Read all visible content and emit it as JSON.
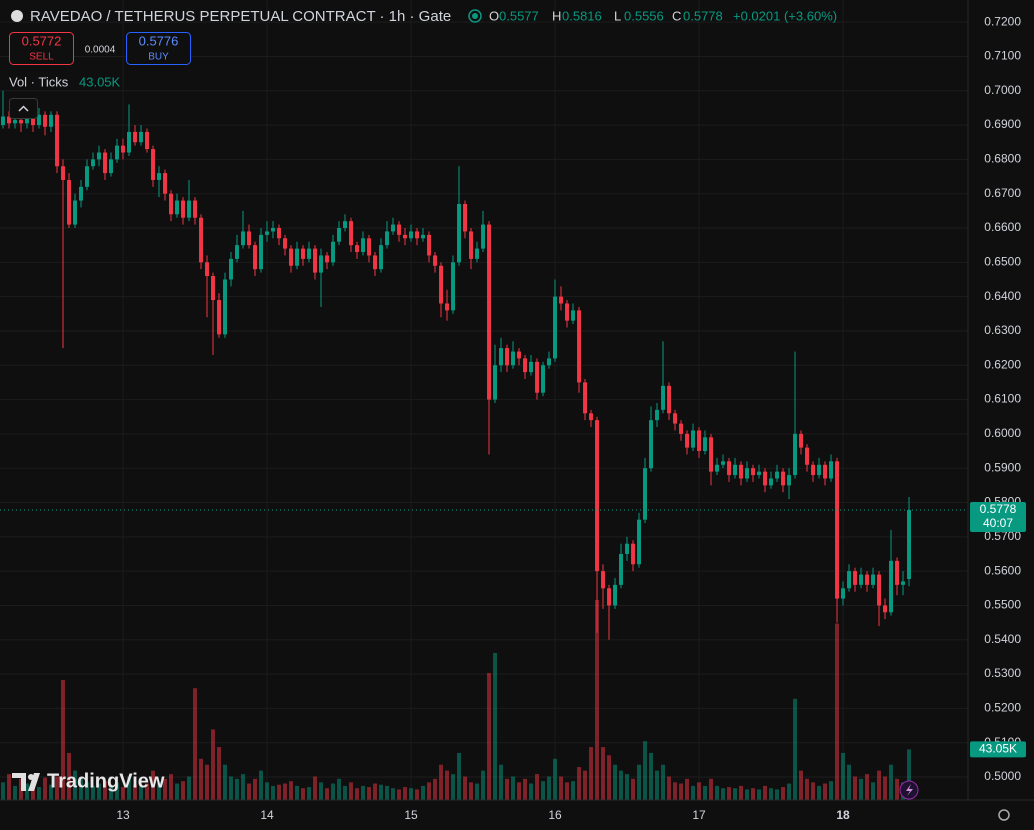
{
  "chart_data": {
    "type": "candlestick",
    "title": "RAVEDAO / TETHERUS PERPETUAL CONTRACT · 1h · Gate",
    "ohlc_labels": [
      "O",
      "H",
      "L",
      "C"
    ],
    "change": "+0.0201 (+3.60%)",
    "indicator": "Vol · Ticks",
    "volume_label": "43.05K",
    "countdown": "40:07",
    "watermark": "TradingView",
    "up_color": "#089981",
    "down_color": "#f23645",
    "grid": true,
    "ylim": [
      0.4933,
      0.7247
    ],
    "yticks": [
      {
        "value": 0.72,
        "label": "0.7200"
      },
      {
        "value": 0.71,
        "label": "0.7100"
      },
      {
        "value": 0.7,
        "label": "0.7000"
      },
      {
        "value": 0.69,
        "label": "0.6900"
      },
      {
        "value": 0.68,
        "label": "0.6800"
      },
      {
        "value": 0.67,
        "label": "0.6700"
      },
      {
        "value": 0.66,
        "label": "0.6600"
      },
      {
        "value": 0.65,
        "label": "0.6500"
      },
      {
        "value": 0.64,
        "label": "0.6400"
      },
      {
        "value": 0.63,
        "label": "0.6300"
      },
      {
        "value": 0.62,
        "label": "0.6200"
      },
      {
        "value": 0.61,
        "label": "0.6100"
      },
      {
        "value": 0.6,
        "label": "0.6000"
      },
      {
        "value": 0.59,
        "label": "0.5900"
      },
      {
        "value": 0.58,
        "label": "0.5800"
      },
      {
        "value": 0.57,
        "label": "0.5700"
      },
      {
        "value": 0.56,
        "label": "0.5600"
      },
      {
        "value": 0.55,
        "label": "0.5500"
      },
      {
        "value": 0.54,
        "label": "0.5400"
      },
      {
        "value": 0.53,
        "label": "0.5300"
      },
      {
        "value": 0.52,
        "label": "0.5200"
      },
      {
        "value": 0.51,
        "label": "0.5100"
      },
      {
        "value": 0.5,
        "label": "0.5000"
      }
    ],
    "xlim": [
      -0.5,
      160.83
    ],
    "xticks": [
      {
        "value": 20,
        "label": "13"
      },
      {
        "value": 44,
        "label": "14"
      },
      {
        "value": 68,
        "label": "15"
      },
      {
        "value": 92,
        "label": "16"
      },
      {
        "value": 116,
        "label": "17"
      },
      {
        "value": 140,
        "label": "18"
      }
    ],
    "ohlc": [
      [
        0.69,
        0.7,
        0.689,
        0.6925
      ],
      [
        0.6925,
        0.694,
        0.689,
        0.6905
      ],
      [
        0.6905,
        0.693,
        0.689,
        0.6915
      ],
      [
        0.6915,
        0.693,
        0.688,
        0.6905
      ],
      [
        0.6905,
        0.694,
        0.689,
        0.692
      ],
      [
        0.692,
        0.694,
        0.688,
        0.69
      ],
      [
        0.69,
        0.695,
        0.689,
        0.693
      ],
      [
        0.693,
        0.694,
        0.687,
        0.6895
      ],
      [
        0.6895,
        0.694,
        0.688,
        0.693
      ],
      [
        0.693,
        0.694,
        0.676,
        0.678
      ],
      [
        0.678,
        0.68,
        0.625,
        0.674
      ],
      [
        0.674,
        0.676,
        0.66,
        0.661
      ],
      [
        0.661,
        0.67,
        0.66,
        0.668
      ],
      [
        0.668,
        0.674,
        0.666,
        0.672
      ],
      [
        0.672,
        0.68,
        0.671,
        0.678
      ],
      [
        0.678,
        0.682,
        0.677,
        0.68
      ],
      [
        0.68,
        0.684,
        0.678,
        0.682
      ],
      [
        0.682,
        0.683,
        0.674,
        0.676
      ],
      [
        0.676,
        0.682,
        0.675,
        0.68
      ],
      [
        0.68,
        0.686,
        0.679,
        0.684
      ],
      [
        0.684,
        0.686,
        0.68,
        0.682
      ],
      [
        0.682,
        0.696,
        0.681,
        0.688
      ],
      [
        0.688,
        0.69,
        0.684,
        0.685
      ],
      [
        0.685,
        0.69,
        0.684,
        0.688
      ],
      [
        0.688,
        0.689,
        0.682,
        0.683
      ],
      [
        0.683,
        0.684,
        0.672,
        0.674
      ],
      [
        0.674,
        0.678,
        0.669,
        0.676
      ],
      [
        0.676,
        0.677,
        0.668,
        0.67
      ],
      [
        0.67,
        0.671,
        0.662,
        0.664
      ],
      [
        0.664,
        0.67,
        0.663,
        0.668
      ],
      [
        0.668,
        0.669,
        0.661,
        0.663
      ],
      [
        0.663,
        0.674,
        0.662,
        0.668
      ],
      [
        0.668,
        0.669,
        0.661,
        0.663
      ],
      [
        0.663,
        0.664,
        0.648,
        0.65
      ],
      [
        0.65,
        0.652,
        0.634,
        0.646
      ],
      [
        0.646,
        0.647,
        0.623,
        0.639
      ],
      [
        0.639,
        0.641,
        0.628,
        0.629
      ],
      [
        0.629,
        0.647,
        0.628,
        0.645
      ],
      [
        0.645,
        0.653,
        0.643,
        0.651
      ],
      [
        0.651,
        0.658,
        0.65,
        0.655
      ],
      [
        0.655,
        0.665,
        0.654,
        0.659
      ],
      [
        0.659,
        0.661,
        0.654,
        0.655
      ],
      [
        0.655,
        0.656,
        0.646,
        0.648
      ],
      [
        0.648,
        0.66,
        0.647,
        0.658
      ],
      [
        0.658,
        0.662,
        0.656,
        0.659
      ],
      [
        0.659,
        0.662,
        0.657,
        0.66
      ],
      [
        0.66,
        0.661,
        0.655,
        0.657
      ],
      [
        0.657,
        0.658,
        0.652,
        0.654
      ],
      [
        0.654,
        0.655,
        0.647,
        0.649
      ],
      [
        0.649,
        0.656,
        0.648,
        0.654
      ],
      [
        0.654,
        0.655,
        0.649,
        0.651
      ],
      [
        0.651,
        0.656,
        0.65,
        0.654
      ],
      [
        0.654,
        0.655,
        0.645,
        0.647
      ],
      [
        0.647,
        0.654,
        0.637,
        0.652
      ],
      [
        0.652,
        0.653,
        0.648,
        0.65
      ],
      [
        0.65,
        0.658,
        0.649,
        0.656
      ],
      [
        0.656,
        0.662,
        0.655,
        0.66
      ],
      [
        0.66,
        0.664,
        0.659,
        0.662
      ],
      [
        0.662,
        0.663,
        0.653,
        0.655
      ],
      [
        0.655,
        0.656,
        0.651,
        0.653
      ],
      [
        0.653,
        0.659,
        0.652,
        0.657
      ],
      [
        0.657,
        0.658,
        0.65,
        0.652
      ],
      [
        0.652,
        0.653,
        0.646,
        0.648
      ],
      [
        0.648,
        0.657,
        0.647,
        0.655
      ],
      [
        0.655,
        0.662,
        0.654,
        0.659
      ],
      [
        0.659,
        0.663,
        0.658,
        0.661
      ],
      [
        0.661,
        0.662,
        0.656,
        0.658
      ],
      [
        0.658,
        0.66,
        0.655,
        0.657
      ],
      [
        0.657,
        0.661,
        0.656,
        0.659
      ],
      [
        0.659,
        0.66,
        0.655,
        0.657
      ],
      [
        0.657,
        0.66,
        0.656,
        0.658
      ],
      [
        0.658,
        0.659,
        0.65,
        0.652
      ],
      [
        0.652,
        0.653,
        0.647,
        0.649
      ],
      [
        0.649,
        0.65,
        0.634,
        0.638
      ],
      [
        0.638,
        0.642,
        0.633,
        0.636
      ],
      [
        0.636,
        0.652,
        0.635,
        0.65
      ],
      [
        0.65,
        0.678,
        0.649,
        0.667
      ],
      [
        0.667,
        0.668,
        0.657,
        0.659
      ],
      [
        0.659,
        0.66,
        0.648,
        0.651
      ],
      [
        0.651,
        0.656,
        0.65,
        0.654
      ],
      [
        0.654,
        0.665,
        0.653,
        0.661
      ],
      [
        0.661,
        0.662,
        0.594,
        0.61
      ],
      [
        0.61,
        0.626,
        0.609,
        0.62
      ],
      [
        0.62,
        0.628,
        0.618,
        0.625
      ],
      [
        0.625,
        0.626,
        0.618,
        0.62
      ],
      [
        0.62,
        0.627,
        0.619,
        0.624
      ],
      [
        0.624,
        0.625,
        0.62,
        0.622
      ],
      [
        0.622,
        0.623,
        0.616,
        0.618
      ],
      [
        0.618,
        0.623,
        0.617,
        0.621
      ],
      [
        0.621,
        0.622,
        0.61,
        0.612
      ],
      [
        0.612,
        0.621,
        0.611,
        0.62
      ],
      [
        0.62,
        0.624,
        0.619,
        0.622
      ],
      [
        0.622,
        0.645,
        0.621,
        0.64
      ],
      [
        0.64,
        0.643,
        0.636,
        0.638
      ],
      [
        0.638,
        0.639,
        0.631,
        0.633
      ],
      [
        0.633,
        0.638,
        0.632,
        0.636
      ],
      [
        0.636,
        0.637,
        0.612,
        0.615
      ],
      [
        0.615,
        0.616,
        0.604,
        0.606
      ],
      [
        0.606,
        0.607,
        0.602,
        0.604
      ],
      [
        0.604,
        0.605,
        0.542,
        0.56
      ],
      [
        0.56,
        0.562,
        0.549,
        0.555
      ],
      [
        0.555,
        0.556,
        0.54,
        0.55
      ],
      [
        0.55,
        0.558,
        0.549,
        0.556
      ],
      [
        0.556,
        0.568,
        0.555,
        0.565
      ],
      [
        0.565,
        0.57,
        0.563,
        0.568
      ],
      [
        0.568,
        0.569,
        0.56,
        0.562
      ],
      [
        0.562,
        0.577,
        0.561,
        0.575
      ],
      [
        0.575,
        0.593,
        0.574,
        0.59
      ],
      [
        0.59,
        0.608,
        0.589,
        0.604
      ],
      [
        0.604,
        0.609,
        0.602,
        0.607
      ],
      [
        0.607,
        0.627,
        0.606,
        0.614
      ],
      [
        0.614,
        0.615,
        0.604,
        0.606
      ],
      [
        0.606,
        0.607,
        0.601,
        0.603
      ],
      [
        0.603,
        0.604,
        0.598,
        0.6
      ],
      [
        0.6,
        0.601,
        0.594,
        0.596
      ],
      [
        0.596,
        0.603,
        0.595,
        0.601
      ],
      [
        0.601,
        0.602,
        0.593,
        0.595
      ],
      [
        0.595,
        0.601,
        0.594,
        0.599
      ],
      [
        0.599,
        0.6,
        0.585,
        0.589
      ],
      [
        0.589,
        0.593,
        0.588,
        0.591
      ],
      [
        0.591,
        0.594,
        0.59,
        0.592
      ],
      [
        0.592,
        0.593,
        0.586,
        0.588
      ],
      [
        0.588,
        0.593,
        0.587,
        0.591
      ],
      [
        0.591,
        0.592,
        0.585,
        0.587
      ],
      [
        0.587,
        0.592,
        0.586,
        0.59
      ],
      [
        0.59,
        0.591,
        0.586,
        0.588
      ],
      [
        0.588,
        0.591,
        0.587,
        0.589
      ],
      [
        0.589,
        0.59,
        0.583,
        0.585
      ],
      [
        0.585,
        0.589,
        0.584,
        0.587
      ],
      [
        0.587,
        0.591,
        0.586,
        0.589
      ],
      [
        0.589,
        0.59,
        0.583,
        0.585
      ],
      [
        0.585,
        0.59,
        0.581,
        0.588
      ],
      [
        0.588,
        0.624,
        0.587,
        0.6
      ],
      [
        0.6,
        0.601,
        0.594,
        0.596
      ],
      [
        0.596,
        0.597,
        0.589,
        0.591
      ],
      [
        0.591,
        0.592,
        0.586,
        0.588
      ],
      [
        0.588,
        0.593,
        0.587,
        0.591
      ],
      [
        0.591,
        0.592,
        0.585,
        0.587
      ],
      [
        0.587,
        0.594,
        0.586,
        0.592
      ],
      [
        0.592,
        0.593,
        0.545,
        0.552
      ],
      [
        0.552,
        0.557,
        0.55,
        0.555
      ],
      [
        0.555,
        0.562,
        0.554,
        0.56
      ],
      [
        0.56,
        0.561,
        0.554,
        0.556
      ],
      [
        0.556,
        0.561,
        0.555,
        0.559
      ],
      [
        0.559,
        0.56,
        0.554,
        0.556
      ],
      [
        0.556,
        0.561,
        0.555,
        0.559
      ],
      [
        0.559,
        0.56,
        0.544,
        0.55
      ],
      [
        0.55,
        0.552,
        0.546,
        0.548
      ],
      [
        0.548,
        0.572,
        0.547,
        0.563
      ],
      [
        0.563,
        0.564,
        0.553,
        0.556
      ],
      [
        0.556,
        0.56,
        0.553,
        0.557
      ],
      [
        0.5577,
        0.5816,
        0.5556,
        0.5778
      ]
    ],
    "volume": [
      15000,
      22000,
      12000,
      18000,
      14000,
      16000,
      11000,
      19000,
      13000,
      20000,
      102000,
      40000,
      25000,
      18000,
      15000,
      12000,
      14000,
      16000,
      12000,
      15000,
      11000,
      20000,
      13000,
      12000,
      14000,
      25000,
      15000,
      18000,
      22000,
      14000,
      16000,
      20000,
      95000,
      35000,
      30000,
      60000,
      45000,
      30000,
      20000,
      18000,
      22000,
      14000,
      18000,
      25000,
      15000,
      12000,
      13000,
      14000,
      16000,
      12000,
      10000,
      11000,
      20000,
      15000,
      10000,
      14000,
      18000,
      12000,
      15000,
      10000,
      12000,
      11000,
      14000,
      13000,
      12000,
      10000,
      9000,
      11000,
      10000,
      9000,
      12000,
      15000,
      18000,
      30000,
      25000,
      22000,
      40000,
      20000,
      15000,
      14000,
      25000,
      108000,
      125000,
      30000,
      18000,
      20000,
      15000,
      18000,
      14000,
      22000,
      16000,
      20000,
      35000,
      20000,
      15000,
      16000,
      28000,
      25000,
      45000,
      170000,
      45000,
      38000,
      30000,
      25000,
      22000,
      18000,
      30000,
      50000,
      40000,
      25000,
      30000,
      20000,
      15000,
      14000,
      18000,
      12000,
      15000,
      12000,
      18000,
      12000,
      10000,
      11000,
      10000,
      12000,
      9000,
      10000,
      9000,
      12000,
      10000,
      9000,
      11000,
      14000,
      86000,
      25000,
      18000,
      15000,
      12000,
      14000,
      16000,
      150000,
      40000,
      30000,
      20000,
      18000,
      22000,
      15000,
      25000,
      20000,
      30000,
      18000,
      15000,
      43050
    ]
  },
  "trade": {
    "sell_price": "0.5772",
    "sell": "SELL",
    "spread": "0.0004",
    "buy_price": "0.5776",
    "buy": "BUY"
  }
}
